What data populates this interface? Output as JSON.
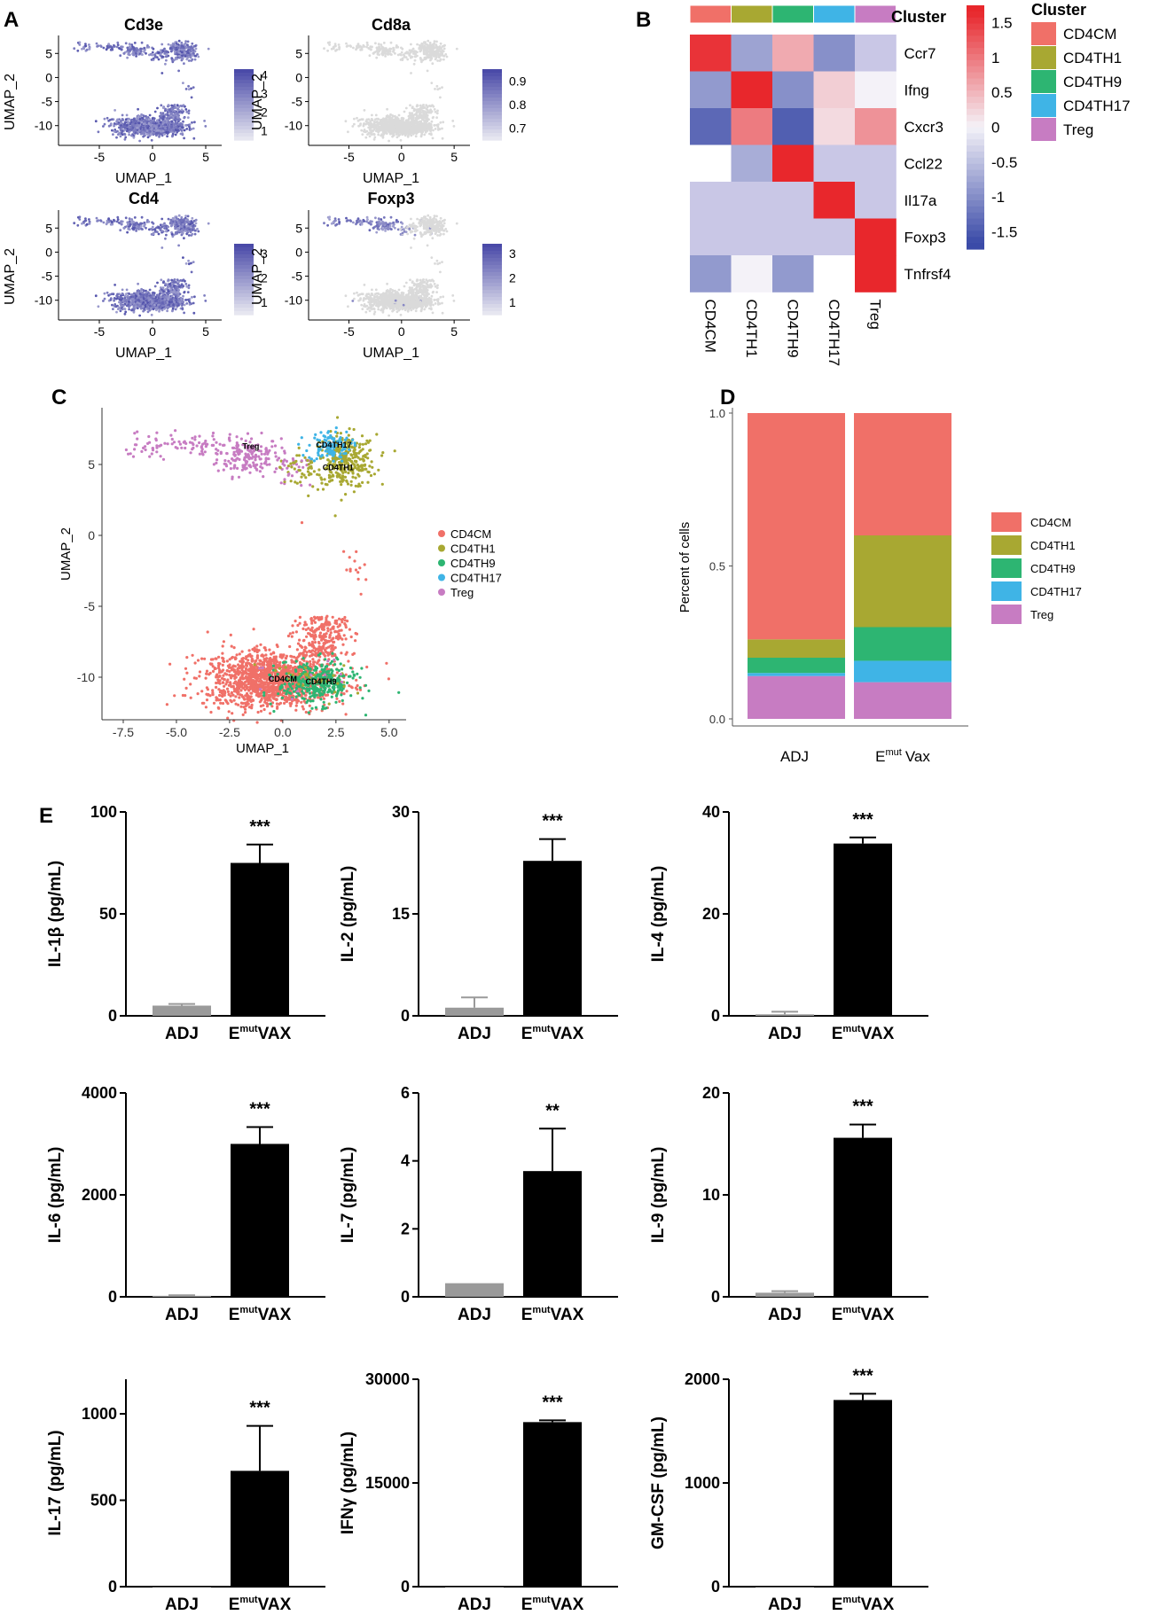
{
  "figure": {
    "panel_labels": [
      "A",
      "B",
      "C",
      "D",
      "E"
    ]
  },
  "colors": {
    "CD4CM": "#F07068",
    "CD4TH1": "#A8A832",
    "CD4TH9": "#2DB572",
    "CD4TH17": "#3FB4E6",
    "Treg": "#C77CC2",
    "feature_high": "#4A4AA8",
    "feature_low": "#E6E6F0",
    "bar_adj": "#9A9A9A",
    "bar_vax": "#000000"
  },
  "chart_data": [
    {
      "id": "A",
      "type": "scatter",
      "subtype": "umap-feature-plots",
      "xlabel": "UMAP_1",
      "ylabel": "UMAP_2",
      "x_ticks": [
        -5,
        0,
        5
      ],
      "y_ticks": [
        5,
        0,
        -5,
        -10
      ],
      "xlim": [
        -8.5,
        6
      ],
      "ylim": [
        -13,
        8
      ],
      "panels": [
        {
          "title": "Cd3e",
          "color_ticks": [
            4,
            3,
            2,
            1
          ],
          "crange": [
            0.5,
            4.3
          ],
          "expression": "high"
        },
        {
          "title": "Cd8a",
          "color_ticks": [
            0.9,
            0.8,
            0.7
          ],
          "crange": [
            0.65,
            0.95
          ],
          "expression": "none"
        },
        {
          "title": "Cd4",
          "color_ticks": [
            3,
            2,
            1
          ],
          "crange": [
            0.5,
            3.4
          ],
          "expression": "high"
        },
        {
          "title": "Foxp3",
          "color_ticks": [
            3,
            2,
            1
          ],
          "crange": [
            0.5,
            3.4
          ],
          "expression": "treg"
        }
      ]
    },
    {
      "id": "B",
      "type": "heatmap",
      "columns": [
        "CD4CM",
        "CD4TH1",
        "CD4TH9",
        "CD4TH17",
        "Treg"
      ],
      "rows": [
        "Ccr7",
        "Ifng",
        "Cxcr3",
        "Ccl22",
        "Il17a",
        "Foxp3",
        "Tnfrsf4"
      ],
      "values": [
        [
          1.6,
          -0.8,
          0.6,
          -1.0,
          -0.6
        ],
        [
          -0.9,
          1.8,
          -1.0,
          0.3,
          0.0
        ],
        [
          -1.4,
          1.0,
          -1.5,
          0.2,
          0.8
        ],
        [
          null,
          -0.7,
          1.8,
          -0.6,
          -0.6
        ],
        [
          -0.6,
          -0.6,
          -0.6,
          1.8,
          -0.5
        ],
        [
          -0.5,
          -0.6,
          -0.6,
          -0.6,
          1.8
        ],
        [
          -0.9,
          0.0,
          -0.9,
          null,
          1.8
        ]
      ],
      "annotation_title": "Cluster",
      "colorbar_ticks": [
        1.5,
        1,
        0.5,
        0,
        -0.5,
        -1,
        -1.5
      ],
      "colorbar_labels": [
        "1.5",
        "1",
        "0.5",
        "0",
        "-0.5",
        "-1",
        "-1.5"
      ],
      "legend_title": "Cluster",
      "legend": [
        "CD4CM",
        "CD4TH1",
        "CD4TH9",
        "CD4TH17",
        "Treg"
      ]
    },
    {
      "id": "C",
      "type": "scatter",
      "subtype": "umap-clusters",
      "xlabel": "UMAP_1",
      "ylabel": "UMAP_2",
      "x_ticks": [
        -7.5,
        -5.0,
        -2.5,
        0.0,
        2.5,
        5.0
      ],
      "x_tick_labels": [
        "-7.5",
        "-5.0",
        "-2.5",
        "0.0",
        "2.5",
        "5.0"
      ],
      "y_ticks": [
        5,
        0,
        -5,
        -10
      ],
      "xlim": [
        -8.5,
        5.8
      ],
      "ylim": [
        -13,
        9
      ],
      "legend": [
        "CD4CM",
        "CD4TH1",
        "CD4TH9",
        "CD4TH17",
        "Treg"
      ],
      "cluster_labels": [
        {
          "text": "Treg",
          "x": -1.5,
          "y": 6.1
        },
        {
          "text": "CD4TH17",
          "x": 2.4,
          "y": 6.2
        },
        {
          "text": "CD4TH1",
          "x": 2.6,
          "y": 4.6
        },
        {
          "text": "CD4CM",
          "x": 0.0,
          "y": -10.3
        },
        {
          "text": "CD4TH9",
          "x": 1.8,
          "y": -10.5
        }
      ]
    },
    {
      "id": "D",
      "type": "bar",
      "stacked": true,
      "categories": [
        "ADJ",
        "Vax"
      ],
      "category_prefix": [
        "",
        "E"
      ],
      "category_superscript": [
        "",
        "mut"
      ],
      "ylabel": "Percent of cells",
      "ylim": [
        0,
        1.0
      ],
      "y_ticks": [
        0.0,
        0.5,
        1.0
      ],
      "y_tick_labels": [
        "0.0",
        "0.5",
        "1.0"
      ],
      "series": [
        {
          "name": "Treg",
          "values": [
            0.14,
            0.12
          ]
        },
        {
          "name": "CD4TH17",
          "values": [
            0.01,
            0.07
          ]
        },
        {
          "name": "CD4TH9",
          "values": [
            0.05,
            0.11
          ]
        },
        {
          "name": "CD4TH1",
          "values": [
            0.06,
            0.3
          ]
        },
        {
          "name": "CD4CM",
          "values": [
            0.74,
            0.4
          ]
        }
      ],
      "legend": [
        "CD4CM",
        "CD4TH1",
        "CD4TH9",
        "CD4TH17",
        "Treg"
      ]
    },
    {
      "id": "E",
      "type": "bar",
      "xcategories": [
        "ADJ",
        "VAX"
      ],
      "x_prefix": [
        "",
        "E"
      ],
      "x_superscript": [
        "",
        "mut"
      ],
      "panels": [
        {
          "ylabel": "IL-1β (pg/mL)",
          "ylim": [
            0,
            100
          ],
          "ticks": [
            0,
            50,
            100
          ],
          "values": [
            5,
            75
          ],
          "errors": [
            0.8,
            9
          ],
          "sig": "***"
        },
        {
          "ylabel": "IL-2 (pg/mL)",
          "ylim": [
            0,
            30
          ],
          "ticks": [
            0,
            15,
            30
          ],
          "values": [
            1.2,
            22.8
          ],
          "errors": [
            1.5,
            3.2
          ],
          "sig": "***"
        },
        {
          "ylabel": "IL-4 (pg/mL)",
          "ylim": [
            0,
            40
          ],
          "ticks": [
            0,
            20,
            40
          ],
          "values": [
            0.3,
            33.8
          ],
          "errors": [
            0.5,
            1.2
          ],
          "sig": "***"
        },
        {
          "ylabel": "IL-6 (pg/mL)",
          "ylim": [
            0,
            4000
          ],
          "ticks": [
            0,
            2000,
            4000
          ],
          "values": [
            20,
            3000
          ],
          "errors": [
            10,
            330
          ],
          "sig": "***"
        },
        {
          "ylabel": "IL-7 (pg/mL)",
          "ylim": [
            0,
            6
          ],
          "ticks": [
            0,
            2,
            4,
            6
          ],
          "values": [
            0.4,
            3.7
          ],
          "errors": [
            0,
            1.25
          ],
          "sig": "**"
        },
        {
          "ylabel": "IL-9 (pg/mL)",
          "ylim": [
            0,
            20
          ],
          "ticks": [
            0,
            10,
            20
          ],
          "values": [
            0.4,
            15.6
          ],
          "errors": [
            0.15,
            1.3
          ],
          "sig": "***"
        },
        {
          "ylabel": "IL-17 (pg/mL)",
          "ylim": [
            0,
            1200
          ],
          "ticks": [
            0,
            500,
            1000
          ],
          "values": [
            0,
            670
          ],
          "errors": [
            0,
            260
          ],
          "sig": "***"
        },
        {
          "ylabel": "IFNγ (pg/mL)",
          "ylim": [
            0,
            30000
          ],
          "ticks": [
            0,
            15000,
            30000
          ],
          "values": [
            0,
            23800
          ],
          "errors": [
            0,
            250
          ],
          "sig": "***"
        },
        {
          "ylabel": "GM-CSF (pg/mL)",
          "ylim": [
            0,
            2000
          ],
          "ticks": [
            0,
            1000,
            2000
          ],
          "values": [
            0,
            1800
          ],
          "errors": [
            0,
            60
          ],
          "sig": "***"
        }
      ]
    }
  ]
}
